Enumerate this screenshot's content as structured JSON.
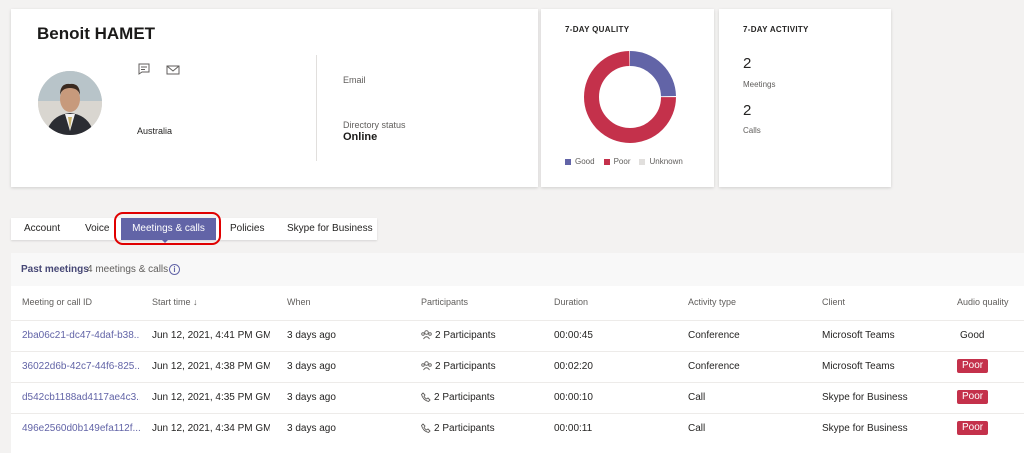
{
  "profile": {
    "name": "Benoit HAMET",
    "location": "Australia",
    "email_label": "Email",
    "directory_status_label": "Directory status",
    "directory_status_value": "Online",
    "icons": [
      "chat-icon",
      "mail-icon"
    ]
  },
  "quality": {
    "title": "7-DAY QUALITY",
    "legend": [
      {
        "label": "Good",
        "color": "#6264a7"
      },
      {
        "label": "Poor",
        "color": "#c4314b"
      },
      {
        "label": "Unknown",
        "color": "#e1dfdd"
      }
    ],
    "chart_data": {
      "type": "pie",
      "categories": [
        "Good",
        "Poor",
        "Unknown"
      ],
      "values": [
        1,
        3,
        0
      ]
    }
  },
  "activity": {
    "title": "7-DAY ACTIVITY",
    "meetings_count": "2",
    "meetings_label": "Meetings",
    "calls_count": "2",
    "calls_label": "Calls"
  },
  "tabs": [
    "Account",
    "Voice",
    "Meetings & calls",
    "Policies",
    "Skype for Business"
  ],
  "active_tab": "Meetings & calls",
  "past_meetings": {
    "title": "Past meetings",
    "count_text": "4  meetings & calls",
    "info_icon": "i",
    "columns": [
      "Meeting or call ID",
      "Start time",
      "When",
      "Participants",
      "Duration",
      "Activity type",
      "Client",
      "Audio quality"
    ],
    "sort_indicator": "↓",
    "rows": [
      {
        "id": "2ba06c21-dc47-4daf-b38...",
        "start": "Jun 12, 2021, 4:41 PM GM...",
        "when": "3 days ago",
        "participants": "2 Participants",
        "participant_icon": "group-icon",
        "duration": "00:00:45",
        "activity": "Conference",
        "client": "Microsoft Teams",
        "quality": "Good"
      },
      {
        "id": "36022d6b-42c7-44f6-825...",
        "start": "Jun 12, 2021, 4:38 PM GM...",
        "when": "3 days ago",
        "participants": "2 Participants",
        "participant_icon": "group-icon",
        "duration": "00:02:20",
        "activity": "Conference",
        "client": "Microsoft Teams",
        "quality": "Poor"
      },
      {
        "id": "d542cb1188ad4117ae4c3...",
        "start": "Jun 12, 2021, 4:35 PM GM...",
        "when": "3 days ago",
        "participants": "2 Participants",
        "participant_icon": "phone-icon",
        "duration": "00:00:10",
        "activity": "Call",
        "client": "Skype for Business",
        "quality": "Poor"
      },
      {
        "id": "496e2560d0b149efa112f...",
        "start": "Jun 12, 2021, 4:34 PM GM...",
        "when": "3 days ago",
        "participants": "2 Participants",
        "participant_icon": "phone-icon",
        "duration": "00:00:11",
        "activity": "Call",
        "client": "Skype for Business",
        "quality": "Poor"
      }
    ]
  }
}
